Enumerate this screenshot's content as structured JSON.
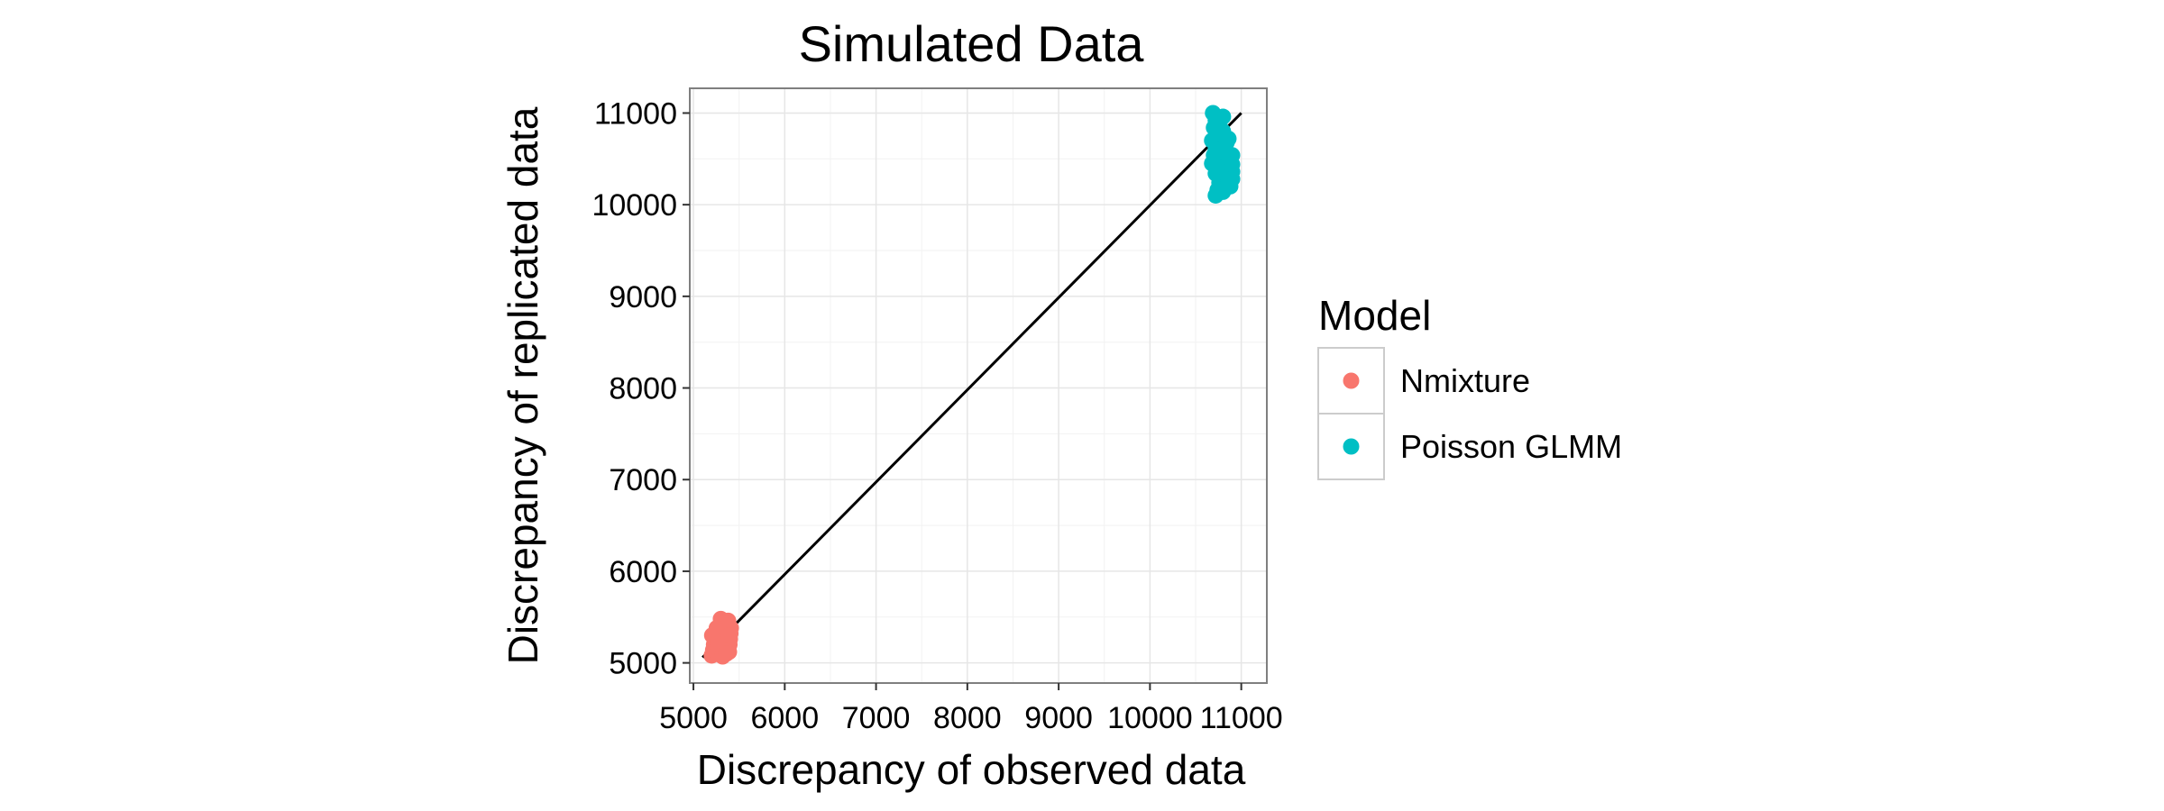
{
  "chart_data": {
    "type": "scatter",
    "title": "Simulated Data",
    "xlabel": "Discrepancy of observed data",
    "ylabel": "Discrepancy of replicated data",
    "xlim": [
      4960,
      11280
    ],
    "ylim": [
      4780,
      11270
    ],
    "x_ticks": [
      5000,
      6000,
      7000,
      8000,
      9000,
      10000,
      11000
    ],
    "y_ticks": [
      5000,
      6000,
      7000,
      8000,
      9000,
      10000,
      11000
    ],
    "x_tick_labels": [
      "5000",
      "6000",
      "7000",
      "8000",
      "9000",
      "10000",
      "11000"
    ],
    "y_tick_labels": [
      "5000",
      "6000",
      "7000",
      "8000",
      "9000",
      "10000",
      "11000"
    ],
    "grid": true,
    "legend": {
      "title": "Model",
      "placement": "right"
    },
    "reference_line": {
      "from": [
        5100,
        5060
      ],
      "to": [
        11000,
        11000
      ]
    },
    "series": [
      {
        "name": "Nmixture",
        "color": "#F8766D",
        "points": [
          [
            5200,
            5080
          ],
          [
            5215,
            5140
          ],
          [
            5225,
            5200
          ],
          [
            5235,
            5260
          ],
          [
            5205,
            5300
          ],
          [
            5245,
            5330
          ],
          [
            5260,
            5100
          ],
          [
            5270,
            5180
          ],
          [
            5280,
            5240
          ],
          [
            5290,
            5300
          ],
          [
            5300,
            5360
          ],
          [
            5310,
            5420
          ],
          [
            5320,
            5070
          ],
          [
            5330,
            5150
          ],
          [
            5340,
            5220
          ],
          [
            5350,
            5280
          ],
          [
            5360,
            5340
          ],
          [
            5370,
            5400
          ],
          [
            5380,
            5460
          ],
          [
            5390,
            5120
          ],
          [
            5395,
            5200
          ],
          [
            5400,
            5260
          ],
          [
            5405,
            5320
          ],
          [
            5410,
            5380
          ],
          [
            5300,
            5480
          ],
          [
            5355,
            5450
          ],
          [
            5255,
            5380
          ],
          [
            5320,
            5240
          ],
          [
            5385,
            5300
          ],
          [
            5360,
            5100
          ]
        ]
      },
      {
        "name": "Poisson GLMM",
        "color": "#00BFC4",
        "points": [
          [
            10690,
            11000
          ],
          [
            10720,
            10920
          ],
          [
            10700,
            10840
          ],
          [
            10760,
            10880
          ],
          [
            10800,
            10800
          ],
          [
            10680,
            10700
          ],
          [
            10740,
            10760
          ],
          [
            10860,
            10720
          ],
          [
            10780,
            10640
          ],
          [
            10820,
            10580
          ],
          [
            10700,
            10540
          ],
          [
            10760,
            10520
          ],
          [
            10900,
            10540
          ],
          [
            10860,
            10480
          ],
          [
            10680,
            10450
          ],
          [
            10740,
            10420
          ],
          [
            10800,
            10400
          ],
          [
            10860,
            10380
          ],
          [
            10900,
            10360
          ],
          [
            10720,
            10340
          ],
          [
            10780,
            10320
          ],
          [
            10840,
            10300
          ],
          [
            10900,
            10280
          ],
          [
            10760,
            10240
          ],
          [
            10820,
            10220
          ],
          [
            10880,
            10200
          ],
          [
            10740,
            10160
          ],
          [
            10800,
            10140
          ],
          [
            10720,
            10100
          ],
          [
            10860,
            10260
          ],
          [
            10900,
            10440
          ],
          [
            10780,
            10580
          ],
          [
            10840,
            10680
          ],
          [
            10720,
            10600
          ],
          [
            10800,
            10960
          ]
        ]
      }
    ]
  }
}
